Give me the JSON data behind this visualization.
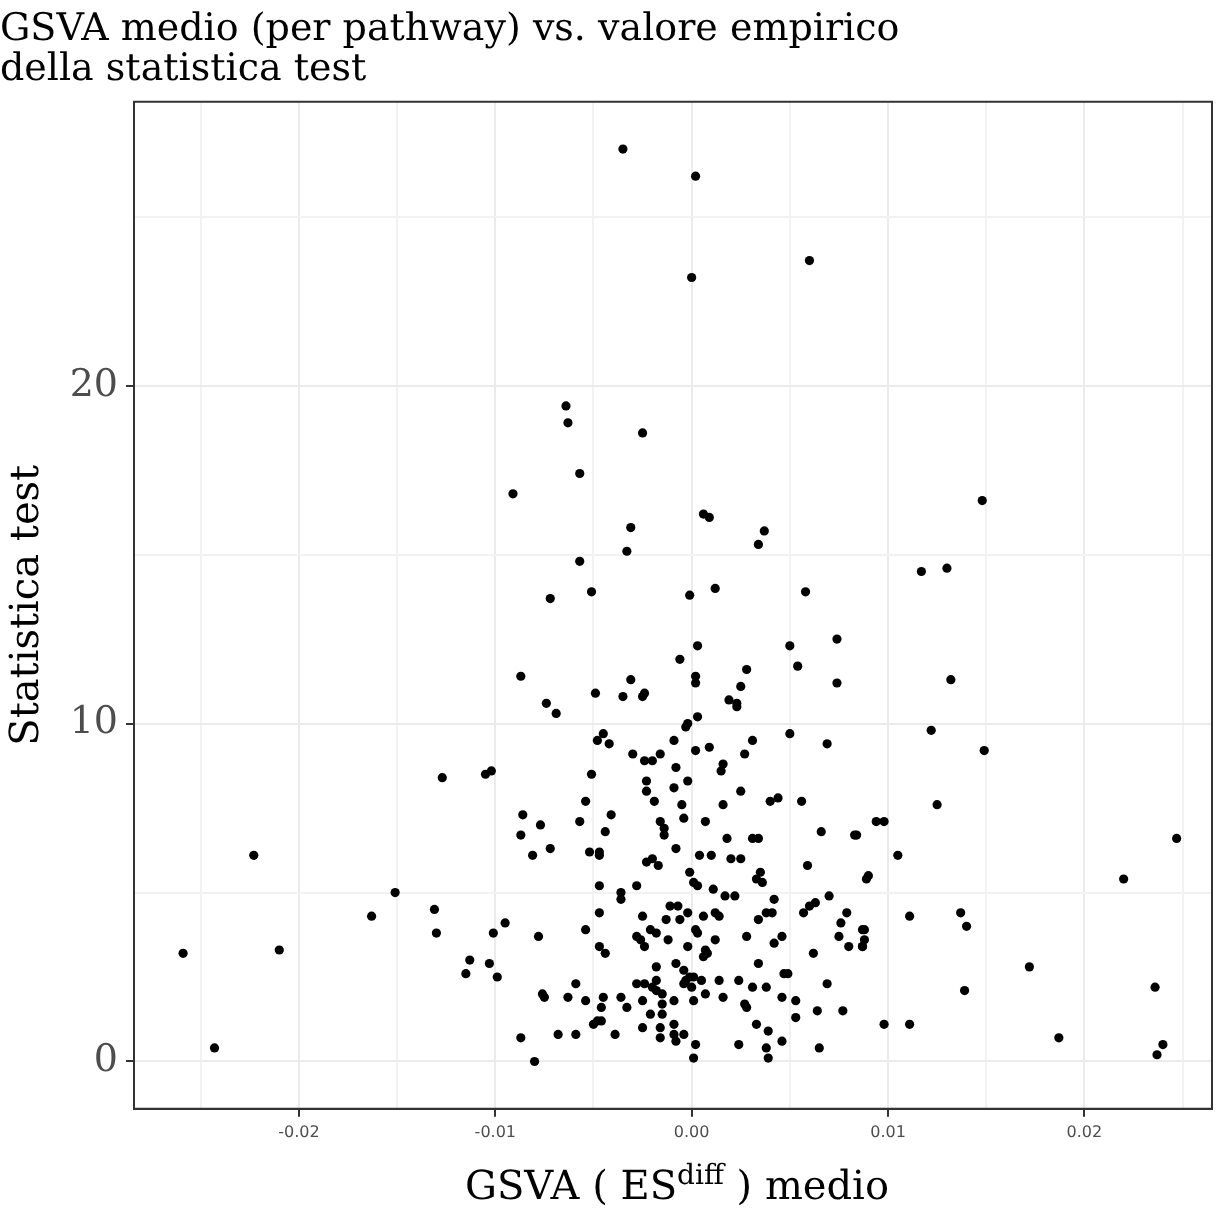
{
  "chart_data": {
    "type": "scatter",
    "title": "GSVA medio (per pathway) vs. valore empirico\ndella statistica test",
    "xlabel": "GSVA ( ES$^{diff}$ ) medio",
    "ylabel": "Statistica test",
    "marker": "circle",
    "grid": true,
    "xlim": [
      -0.0284,
      0.0265
    ],
    "ylim": [
      -1.4,
      28.4
    ],
    "xticks": [
      {
        "value": -0.025,
        "label": null
      },
      {
        "value": -0.02,
        "label": "-0.02"
      },
      {
        "value": -0.015,
        "label": null
      },
      {
        "value": -0.01,
        "label": "-0.01"
      },
      {
        "value": -0.005,
        "label": null
      },
      {
        "value": 0,
        "label": "0.00"
      },
      {
        "value": 0.005,
        "label": null
      },
      {
        "value": 0.01,
        "label": "0.01"
      },
      {
        "value": 0.015,
        "label": null
      },
      {
        "value": 0.02,
        "label": "0.02"
      },
      {
        "value": 0.025,
        "label": null
      }
    ],
    "yticks": [
      0,
      {
        "value": 5,
        "label": null
      },
      10,
      {
        "value": 15,
        "label": null
      },
      20,
      {
        "value": 25,
        "label": null
      }
    ],
    "series": [
      {
        "color": "#000000",
        "x": [
          -0.0035,
          0.0002,
          0.006,
          0.0,
          -0.0064,
          -0.0063,
          -0.0025,
          -0.0057,
          -0.0091,
          0.0006,
          0.0009,
          -0.0031,
          0.0037,
          0.0034,
          -0.0033,
          -0.0057,
          -0.0072,
          -0.0051,
          -0.0001,
          0.0012,
          0.0058,
          0.0148,
          0.0117,
          0.013,
          -0.0127,
          -0.0105,
          -0.0102,
          -0.0223,
          -0.0151,
          -0.0163,
          -0.0131,
          -0.013,
          -0.0101,
          -0.0095,
          -0.0259,
          -0.021,
          -0.0113,
          -0.0115,
          -0.0103,
          -0.0099,
          -0.0243,
          0.0132,
          0.0122,
          0.0149,
          0.0125,
          0.0094,
          0.0098,
          0.0084,
          0.0105,
          0.0089,
          0.009,
          0.0247,
          0.022,
          0.0111,
          0.0137,
          0.014,
          0.0087,
          0.0088,
          0.0087,
          0.0172,
          0.0139,
          0.0236,
          0.0098,
          0.0111,
          0.0187,
          0.024,
          0.0237,
          -0.0087,
          -0.0074,
          -0.0069,
          -0.0049,
          -0.0035,
          -0.0031,
          -0.0025,
          -0.0024,
          -0.0006,
          0.0003,
          0.0002,
          0.0002,
          0.0028,
          0.0025,
          0.0019,
          0.0023,
          0.0023,
          0.005,
          0.0054,
          0.0074,
          0.0074,
          0.0003,
          -0.0002,
          -0.0003,
          0.005,
          0.0069,
          -0.0048,
          -0.0045,
          -0.0042,
          -0.003,
          -0.0024,
          -0.002,
          -0.0016,
          -0.0009,
          0.0002,
          0.0009,
          -0.0008,
          0.0016,
          0.0015,
          0.0027,
          0.0031,
          -0.0051,
          -0.0023,
          -0.0023,
          -0.0009,
          -0.0002,
          -0.0019,
          -0.0005,
          -0.0054,
          0.0016,
          0.0025,
          0.004,
          0.0044,
          0.0056,
          -0.0086,
          -0.0077,
          -0.0087,
          -0.0081,
          -0.0072,
          -0.0057,
          -0.0041,
          -0.0044,
          -0.0052,
          -0.0047,
          -0.0047,
          -0.0016,
          -0.0014,
          -0.0014,
          -0.0004,
          0.0007,
          -0.0008,
          0.0018,
          0.0031,
          0.0034,
          0.0004,
          0.001,
          0.002,
          0.0025,
          -0.0023,
          -0.002,
          -0.0017,
          -0.0028,
          -0.0047,
          -0.0036,
          -0.0036,
          -0.0001,
          0.0001,
          0.0003,
          0.0011,
          0.0017,
          0.0022,
          0.0033,
          0.0035,
          0.0036,
          0.0042,
          0.0066,
          0.0083,
          0.0059,
          0.007,
          0.0063,
          0.006,
          0.0057,
          0.0079,
          0.0076,
          0.0075,
          0.008,
          0.0088,
          0.0087,
          -0.0078,
          -0.0054,
          -0.0047,
          -0.0047,
          -0.0044,
          -0.0025,
          -0.0011,
          -0.0007,
          -0.0013,
          -0.0006,
          -0.0002,
          0.0006,
          0.0012,
          0.0014,
          0.0002,
          0.0003,
          -0.0021,
          -0.0018,
          -0.0028,
          -0.0026,
          -0.0024,
          -0.0012,
          -0.0002,
          0.0007,
          0.0006,
          0.0008,
          0.0012,
          0.0028,
          0.0034,
          0.0046,
          0.0042,
          -0.0018,
          -0.0008,
          -0.0004,
          -0.0001,
          -0.0003,
          0.0001,
          -0.0004,
          0.0,
          0.0001,
          0.0007,
          -0.0018,
          -0.002,
          -0.0018,
          -0.0015,
          -0.0028,
          -0.0024,
          -0.0059,
          -0.0076,
          -0.0075,
          -0.0063,
          -0.0054,
          -0.0045,
          -0.0046,
          -0.0036,
          -0.0033,
          -0.0048,
          -0.0046,
          -0.005,
          -0.0025,
          -0.0021,
          -0.0015,
          -0.0015,
          -0.0009,
          -0.0025,
          -0.0016,
          -0.0016,
          -0.0009,
          -0.0009,
          -0.0008,
          -0.0004,
          -0.0039,
          -0.0059,
          -0.0068,
          -0.0087,
          -0.008,
          0.0002,
          0.0001,
          0.0016,
          0.0024,
          0.0031,
          0.0027,
          0.0028,
          0.0038,
          0.0033,
          0.0039,
          0.0024,
          0.0038,
          0.0039,
          0.0046,
          0.0046,
          0.0053,
          0.0053,
          0.0064,
          0.0065,
          0.0069,
          0.0077,
          0.0047,
          0.0049,
          0.0062,
          0.0034,
          0.0038,
          0.0041,
          0.0014,
          0.0005
        ],
        "values": [
          27.0,
          26.2,
          23.7,
          23.2,
          19.4,
          18.9,
          18.6,
          17.4,
          16.8,
          16.2,
          16.1,
          15.8,
          15.7,
          15.3,
          15.1,
          14.8,
          13.7,
          13.9,
          13.8,
          14.0,
          13.9,
          16.6,
          14.5,
          14.6,
          8.4,
          8.5,
          8.6,
          6.1,
          5.0,
          4.3,
          4.5,
          3.8,
          3.8,
          4.1,
          3.2,
          3.3,
          3.0,
          2.6,
          2.9,
          2.5,
          0.4,
          11.3,
          9.8,
          9.2,
          7.6,
          7.1,
          7.1,
          6.7,
          6.1,
          5.4,
          5.5,
          6.6,
          5.4,
          4.3,
          4.4,
          4.0,
          3.9,
          3.6,
          3.4,
          2.8,
          2.1,
          2.2,
          1.1,
          1.1,
          0.7,
          0.5,
          0.2,
          11.4,
          10.6,
          10.3,
          10.9,
          10.8,
          11.3,
          10.8,
          10.9,
          11.9,
          12.3,
          11.4,
          11.2,
          11.6,
          11.1,
          10.7,
          10.6,
          10.5,
          12.3,
          11.7,
          12.5,
          11.2,
          10.2,
          10.0,
          9.9,
          9.7,
          9.4,
          9.5,
          9.7,
          9.4,
          9.1,
          8.9,
          8.9,
          9.1,
          9.5,
          9.2,
          9.3,
          8.7,
          8.8,
          8.6,
          9.1,
          9.5,
          8.5,
          8.3,
          8.0,
          8.1,
          8.3,
          7.7,
          7.6,
          7.7,
          7.6,
          8.0,
          7.7,
          7.8,
          7.7,
          7.3,
          7.0,
          6.7,
          6.1,
          6.3,
          7.1,
          7.3,
          6.8,
          6.2,
          6.2,
          6.1,
          7.1,
          6.9,
          6.7,
          7.2,
          7.1,
          6.3,
          6.6,
          6.6,
          6.6,
          6.1,
          6.1,
          6.0,
          6.0,
          5.9,
          6.0,
          5.8,
          5.2,
          5.2,
          5.0,
          4.8,
          5.6,
          5.3,
          5.2,
          5.1,
          4.9,
          4.9,
          5.4,
          5.6,
          5.3,
          4.8,
          6.8,
          6.7,
          5.8,
          4.9,
          4.7,
          4.6,
          4.4,
          4.4,
          4.1,
          3.7,
          3.4,
          3.9,
          3.4,
          3.7,
          3.9,
          4.4,
          3.4,
          3.2,
          4.3,
          4.6,
          4.6,
          4.2,
          4.2,
          4.4,
          4.3,
          4.4,
          4.3,
          3.9,
          3.8,
          3.9,
          3.8,
          3.7,
          3.6,
          3.4,
          3.6,
          3.4,
          3.3,
          3.1,
          3.2,
          3.6,
          3.7,
          2.9,
          3.7,
          3.5,
          2.8,
          2.9,
          2.7,
          2.5,
          2.4,
          2.5,
          2.3,
          2.2,
          1.8,
          2.0,
          2.4,
          2.2,
          2.1,
          2.0,
          2.3,
          2.3,
          2.3,
          2.0,
          1.9,
          1.9,
          1.8,
          1.9,
          1.6,
          1.9,
          1.6,
          1.2,
          1.2,
          1.1,
          1.8,
          1.4,
          1.7,
          1.4,
          1.8,
          1.0,
          1.0,
          0.7,
          1.1,
          0.8,
          0.6,
          0.8,
          0.8,
          0.8,
          0.8,
          0.7,
          0.0,
          0.5,
          0.1,
          1.9,
          2.4,
          2.2,
          1.7,
          1.6,
          2.2,
          1.1,
          0.9,
          0.5,
          0.4,
          0.1,
          0.6,
          1.9,
          1.8,
          1.3,
          1.5,
          0.4,
          2.3,
          1.5,
          2.6,
          2.6,
          3.2,
          4.2,
          4.4,
          4.4,
          2.4,
          2.4
        ]
      }
    ]
  }
}
